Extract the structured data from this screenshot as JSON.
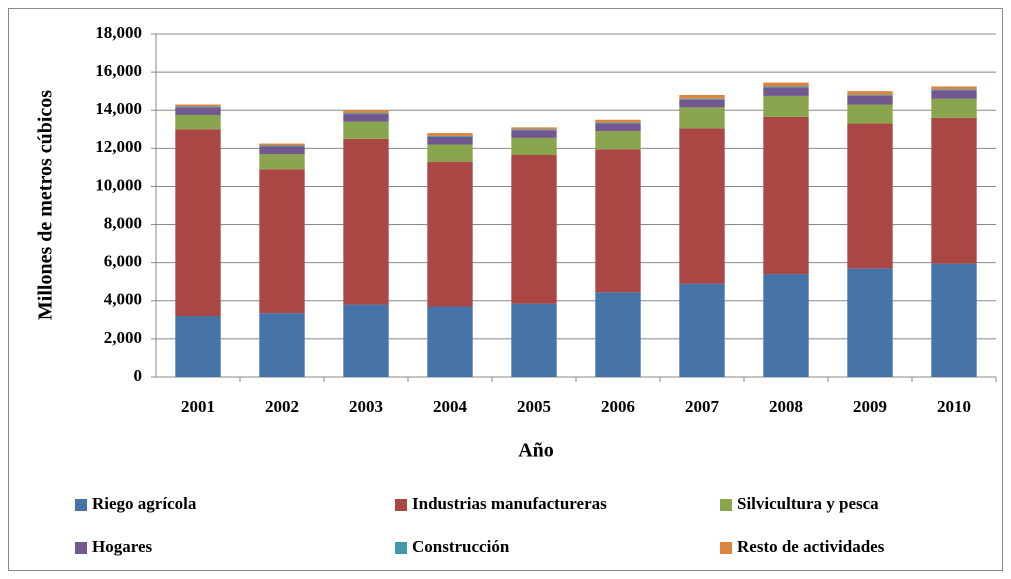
{
  "chart_data": {
    "type": "stacked_bar",
    "x_label": "Año",
    "y_label": "Millones de metros cúbicos",
    "categories": [
      "2001",
      "2002",
      "2003",
      "2004",
      "2005",
      "2006",
      "2007",
      "2008",
      "2009",
      "2010"
    ],
    "series": [
      {
        "name": "Riego agrícola",
        "color": "#4572a7",
        "values": [
          3200,
          3350,
          3800,
          3700,
          3850,
          4450,
          4900,
          5400,
          5700,
          5950
        ]
      },
      {
        "name": "Industrias manufactureras",
        "color": "#aa4643",
        "values": [
          9800,
          7550,
          8700,
          7600,
          7800,
          7500,
          8150,
          8250,
          7600,
          7650
        ]
      },
      {
        "name": "Silvicultura y pesca",
        "color": "#89a54e",
        "values": [
          750,
          800,
          900,
          900,
          900,
          950,
          1100,
          1100,
          1000,
          1000
        ]
      },
      {
        "name": "Hogares",
        "color": "#71588f",
        "values": [
          400,
          400,
          400,
          400,
          400,
          400,
          400,
          450,
          450,
          450
        ]
      },
      {
        "name": "Construcción",
        "color": "#4198af",
        "values": [
          50,
          50,
          50,
          50,
          50,
          50,
          50,
          50,
          50,
          50
        ]
      },
      {
        "name": "Resto de actividades",
        "color": "#db843d",
        "values": [
          100,
          100,
          150,
          150,
          100,
          150,
          200,
          200,
          200,
          150
        ]
      }
    ],
    "ylim": [
      0,
      18000
    ],
    "yticks": [
      0,
      {
        "value": 2000,
        "label": "2,000"
      },
      {
        "value": 4000,
        "label": "4,000"
      },
      {
        "value": 6000,
        "label": "6,000"
      },
      {
        "value": 8000,
        "label": "8,000"
      },
      {
        "value": 10000,
        "label": "10,000"
      },
      {
        "value": 12000,
        "label": "12,000"
      },
      {
        "value": 14000,
        "label": "14,000"
      },
      {
        "value": 16000,
        "label": "16,000"
      },
      {
        "value": 18000,
        "label": "18,000"
      }
    ],
    "grid": true
  }
}
